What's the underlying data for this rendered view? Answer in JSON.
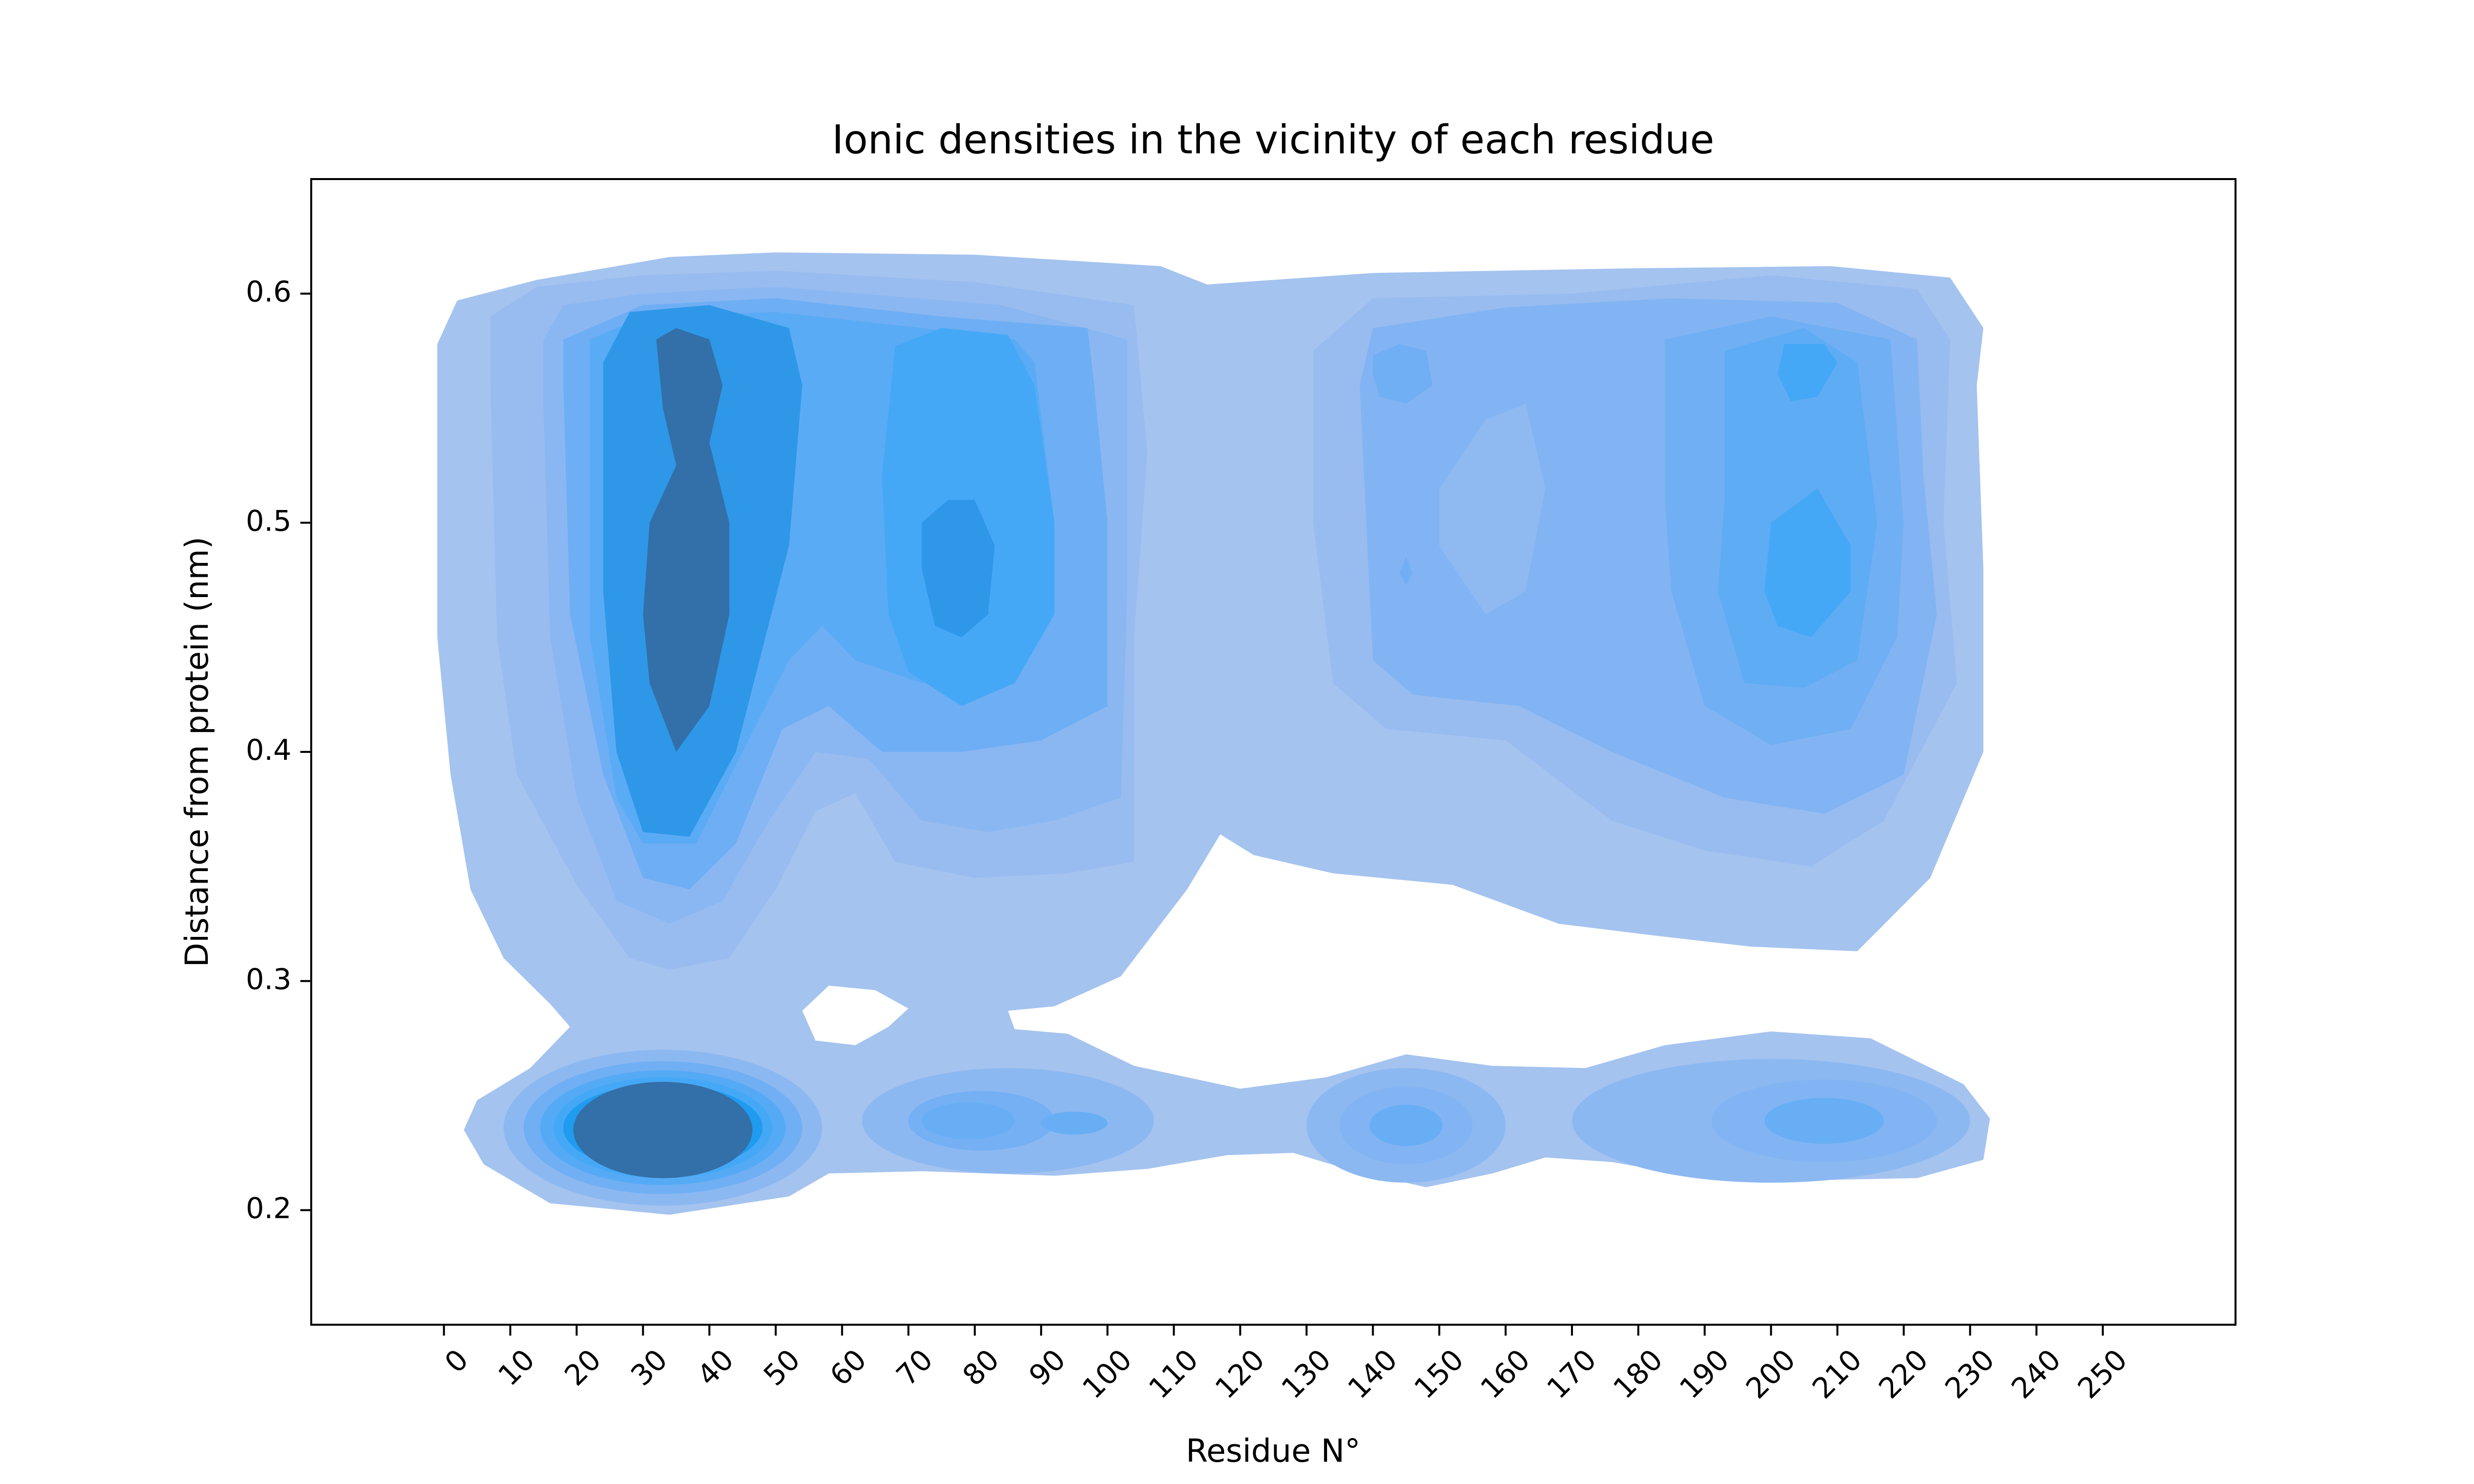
{
  "chart_data": {
    "type": "heatmap",
    "kind": "2D kernel density estimate (filled contours)",
    "title": "Ionic densities in the vicinity of each residue",
    "xlabel": "Residue N°",
    "ylabel": "Distance from protein (nm)",
    "xlim": [
      -20,
      270
    ],
    "ylim": [
      0.15,
      0.65
    ],
    "xticks": [
      0,
      10,
      20,
      30,
      40,
      50,
      60,
      70,
      80,
      90,
      100,
      110,
      120,
      130,
      140,
      150,
      160,
      170,
      180,
      190,
      200,
      210,
      220,
      230,
      240,
      250
    ],
    "yticks": [
      0.2,
      0.3,
      0.4,
      0.5,
      0.6
    ],
    "ytick_labels": [
      "0.2",
      "0.3",
      "0.4",
      "0.5",
      "0.6"
    ],
    "grid": false,
    "legend": "none",
    "colors": {
      "level_low": "#a4c3ef",
      "level_mid": "#82b4f3",
      "level_high": "#44a8f6",
      "level_core": "#2e97e8",
      "level_peak": "#336fa8"
    },
    "density_peaks": [
      {
        "x": 35,
        "y": 0.47,
        "level": "peak"
      },
      {
        "x": 33,
        "y": 0.235,
        "level": "peak"
      },
      {
        "x": 78,
        "y": 0.48,
        "level": "core"
      },
      {
        "x": 205,
        "y": 0.48,
        "level": "high"
      },
      {
        "x": 205,
        "y": 0.57,
        "level": "high"
      },
      {
        "x": 145,
        "y": 0.565,
        "level": "mid"
      },
      {
        "x": 145,
        "y": 0.237,
        "level": "mid"
      },
      {
        "x": 78,
        "y": 0.24,
        "level": "mid"
      },
      {
        "x": 95,
        "y": 0.238,
        "level": "mid"
      },
      {
        "x": 208,
        "y": 0.238,
        "level": "mid"
      }
    ]
  }
}
